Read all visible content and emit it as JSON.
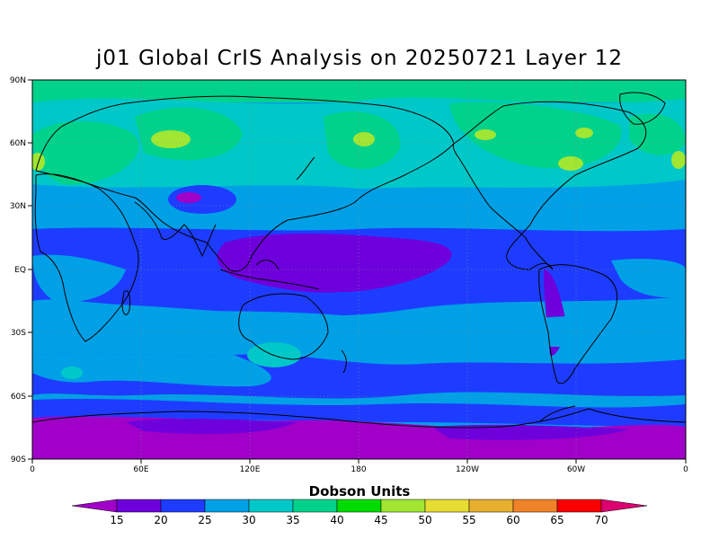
{
  "title": "j01 Global CrIS Analysis on 20250721 Layer 12",
  "map": {
    "lat_ticks": [
      "90N",
      "60N",
      "30N",
      "EQ",
      "30S",
      "60S",
      "90S"
    ],
    "lon_ticks": [
      "0",
      "60E",
      "120E",
      "180",
      "120W",
      "60W",
      "0"
    ]
  },
  "colorbar": {
    "title": "Dobson Units",
    "levels": [
      "15",
      "20",
      "25",
      "30",
      "35",
      "40",
      "45",
      "50",
      "55",
      "60",
      "65",
      "70"
    ],
    "colors": [
      "#a000c8",
      "#6e00dc",
      "#1e3cff",
      "#00a0e6",
      "#00c8c8",
      "#00d28c",
      "#00dc00",
      "#a0e632",
      "#e6dc32",
      "#e6af2d",
      "#f08228",
      "#fa0000",
      "#dc0070"
    ]
  },
  "chart_data": {
    "type": "heatmap",
    "title": "j01 Global CrIS Analysis on 20250721 Layer 12",
    "units": "Dobson Units",
    "x_range": [
      0,
      360
    ],
    "y_range": [
      -90,
      90
    ],
    "zones": [
      {
        "lat_from": 90,
        "lat_to": 80,
        "value": 37
      },
      {
        "lat_from": 80,
        "lat_to": 40,
        "value": 32
      },
      {
        "lat_from": 40,
        "lat_to": 20,
        "value": 28
      },
      {
        "lat_from": 20,
        "lat_to": -20,
        "value": 22
      },
      {
        "lat_from": -20,
        "lat_to": -60,
        "value": 27
      },
      {
        "lat_from": -60,
        "lat_to": -72,
        "value": 22
      },
      {
        "lat_from": -72,
        "lat_to": -90,
        "value": 15
      }
    ]
  }
}
